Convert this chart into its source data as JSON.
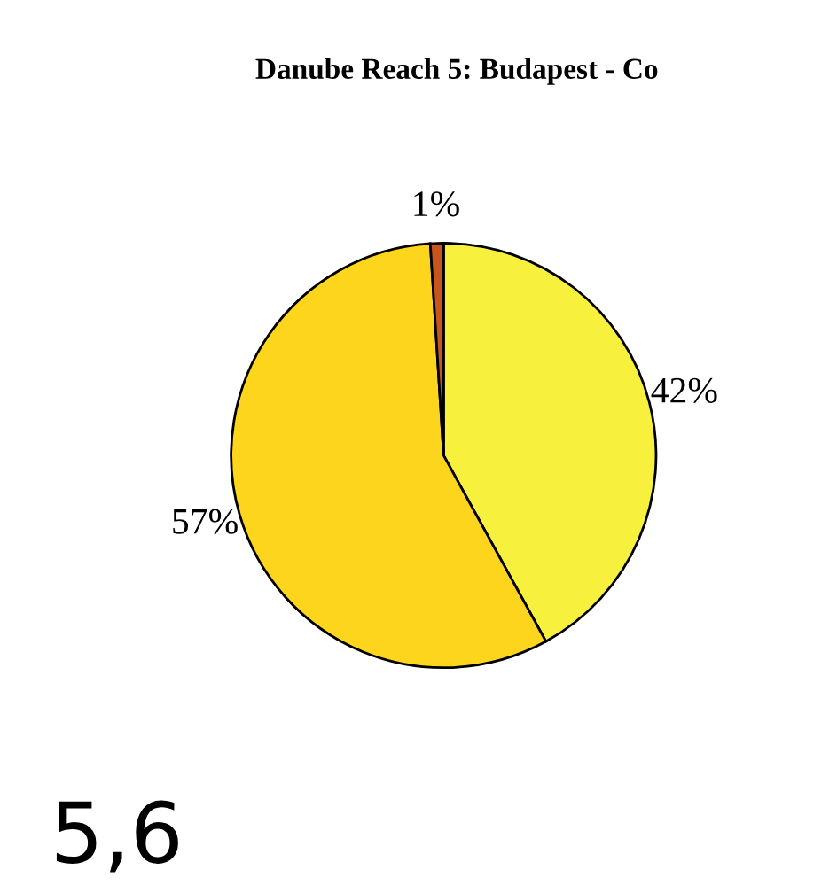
{
  "chart_data": {
    "type": "pie",
    "title": "Danube Reach 5: Budapest - Co",
    "categories": [
      null,
      null,
      null
    ],
    "values": [
      42,
      57,
      1
    ],
    "colors": [
      "#f7f03c",
      "#fcd51c",
      "#c8551e"
    ],
    "value_labels": [
      "42%",
      "57%",
      "1%"
    ],
    "annotations": [
      "5,6"
    ]
  }
}
